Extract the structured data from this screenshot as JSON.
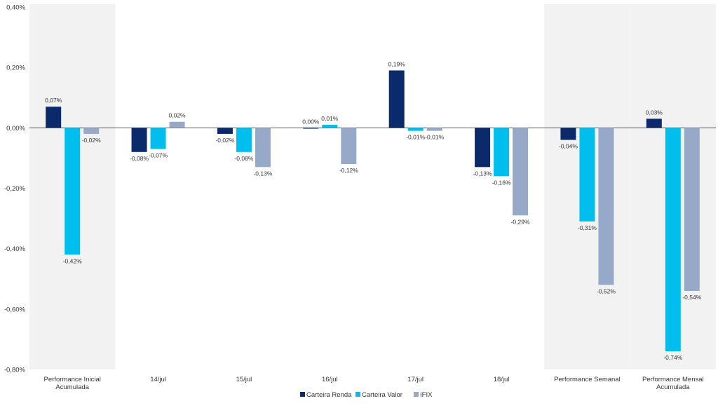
{
  "chart_data": {
    "type": "bar",
    "categories": [
      [
        "Performance Inicial",
        "Acumulada"
      ],
      [
        "14/jul"
      ],
      [
        "15/jul"
      ],
      [
        "16/jul"
      ],
      [
        "17/jul"
      ],
      [
        "18/jul"
      ],
      [
        "Performance Semanal"
      ],
      [
        "Performance Mensal",
        "Acumulada"
      ]
    ],
    "highlighted_categories": [
      0,
      6,
      7
    ],
    "series": [
      {
        "name": "Carteira Renda",
        "color": "#0b2a6b",
        "values": [
          0.07,
          -0.08,
          -0.02,
          0.0,
          0.19,
          -0.13,
          -0.04,
          0.03
        ],
        "labels": [
          "0,07%",
          "-0,08%",
          "-0,02%",
          "0,00%",
          "0,19%",
          "-0,13%",
          "-0,04%",
          "0,03%"
        ]
      },
      {
        "name": "Carteira Valor",
        "color": "#00bfef",
        "values": [
          -0.42,
          -0.07,
          -0.08,
          0.01,
          -0.01,
          -0.16,
          -0.31,
          -0.74
        ],
        "labels": [
          "-0,42%",
          "-0,07%",
          "-0,08%",
          "0,01%",
          "-0,01%",
          "-0,16%",
          "-0,31%",
          "-0,74%"
        ]
      },
      {
        "name": "IFIX",
        "color": "#97a9c8",
        "values": [
          -0.02,
          0.02,
          -0.13,
          -0.12,
          -0.01,
          -0.29,
          -0.52,
          -0.54
        ],
        "labels": [
          "-0,02%",
          "0,02%",
          "-0,13%",
          "-0,12%",
          "-0,01%",
          "-0,29%",
          "-0,52%",
          "-0,54%"
        ]
      }
    ],
    "y_ticks": [
      0.4,
      0.2,
      0.0,
      -0.2,
      -0.4,
      -0.6,
      -0.8
    ],
    "y_tick_labels": [
      "0,40%",
      "0,20%",
      "0,00%",
      "-0,20%",
      "-0,40%",
      "-0,60%",
      "-0,80%"
    ],
    "ylim": [
      -0.8,
      0.4
    ],
    "grid": false,
    "legend_position": "bottom-center",
    "highlight_color": "#f2f2f2"
  }
}
